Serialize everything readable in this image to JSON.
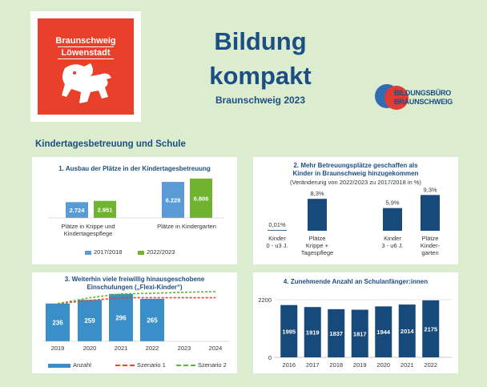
{
  "header": {
    "logo_line1": "Braunschweig",
    "logo_line2": "Löwenstadt",
    "title_line1": "Bildung",
    "title_line2": "kompakt",
    "subtitle": "Braunschweig 2023",
    "partner_logo_line1": "BILDUNGSBÜRO",
    "partner_logo_line2": "BRAUNSCHWEIG"
  },
  "section_title": "Kindertagesbetreuung und Schule",
  "colors": {
    "background": "#dcedcf",
    "navy": "#1b4e83",
    "light_blue": "#5b9bd5",
    "green": "#70b32e",
    "chart_blue": "#3a8fc9",
    "red_dashed": "#e8402a",
    "green_dashed": "#5fb832",
    "dark_blue": "#17497b"
  },
  "chart_data": [
    {
      "type": "bar",
      "title": "1. Ausbau der Plätze in der Kindertagesbetreuung",
      "categories": [
        "Plätze in Krippe und Kindertagespflege",
        "Plätze in Kindergarten"
      ],
      "category_lines": [
        [
          "Plätze in Krippe und",
          "Kindertagespflege"
        ],
        [
          "Plätze in Kindergarten"
        ]
      ],
      "series": [
        {
          "name": "2017/2018",
          "values": [
            2724,
            6228
          ],
          "labels": [
            "2.724",
            "6.228"
          ]
        },
        {
          "name": "2022/2023",
          "values": [
            2951,
            6806
          ],
          "labels": [
            "2.951",
            "6.806"
          ]
        }
      ]
    },
    {
      "type": "bar",
      "title_line1": "2. Mehr Betreuungsplätze geschaffen als",
      "title_line2": "Kinder in Braunschweig hinzugekommen",
      "subtitle": "(Veränderung von 2022/2023 zu 2017/2018 in %)",
      "categories": [
        "Kinder 0 - u3 J.",
        "Plätze Krippe + Tagespflege",
        "Kinder 3 - u6 J.",
        "Plätze Kindergarten"
      ],
      "category_lines": [
        [
          "Kinder",
          "0 - u3 J."
        ],
        [
          "Plätze",
          "Krippe +",
          "Tagespflege"
        ],
        [
          "Kinder",
          "3 - u6 J."
        ],
        [
          "Plätze",
          "Kinder-",
          "garten"
        ]
      ],
      "values": [
        0.01,
        8.3,
        5.9,
        9.3
      ],
      "labels": [
        "0,01%",
        "8,3%",
        "5,9%",
        "9,3%"
      ]
    },
    {
      "type": "bar",
      "title_line1": "3. Weiterhin viele freiwillig hinausgeschobene",
      "title_line2": "Einschulungen („Flexi-Kinder“)",
      "categories": [
        "2019",
        "2020",
        "2021",
        "2022",
        "2023",
        "2024"
      ],
      "bars": {
        "name": "Anzahl",
        "values": [
          236,
          259,
          296,
          265
        ]
      },
      "lines": [
        {
          "name": "Szenario 1",
          "values": [
            236,
            255,
            272,
            272,
            272,
            272
          ]
        },
        {
          "name": "Szenario 2",
          "values": [
            236,
            272,
            296,
            300,
            306,
            310
          ]
        }
      ]
    },
    {
      "type": "bar",
      "title": "4. Zunehmende Anzahl an Schulanfänger:innen",
      "categories": [
        "2016",
        "2017",
        "2018",
        "2019",
        "2020",
        "2021",
        "2022"
      ],
      "values": [
        1995,
        1919,
        1837,
        1817,
        1944,
        2014,
        2175
      ],
      "y_ticks": [
        "2200",
        "0"
      ],
      "ylim": [
        0,
        2200
      ]
    }
  ]
}
